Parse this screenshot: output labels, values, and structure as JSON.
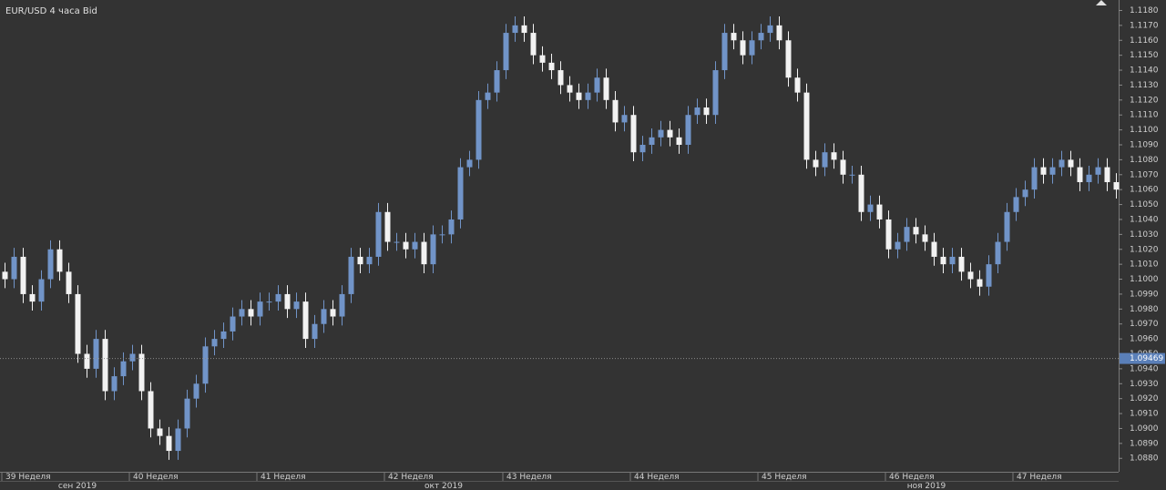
{
  "chart_data": {
    "type": "candlestick",
    "title": "EUR/USD  4 часа Bid",
    "categories": [
      "39 Неделя",
      null,
      null,
      null,
      null,
      null,
      null,
      null,
      null,
      null,
      null,
      null,
      null,
      null,
      "40 Неделя",
      null,
      null,
      null,
      null,
      null,
      null,
      null,
      null,
      null,
      null,
      null,
      null,
      null,
      "41 Неделя",
      null,
      null,
      null,
      null,
      null,
      null,
      null,
      null,
      null,
      null,
      null,
      null,
      null,
      "42 Неделя",
      null,
      null,
      null,
      null,
      null,
      null,
      null,
      null,
      null,
      null,
      null,
      null,
      "43 Неделя",
      null,
      null,
      null,
      null,
      null,
      null,
      null,
      null,
      null,
      null,
      null,
      null,
      null,
      "44 Неделя",
      null,
      null,
      null,
      null,
      null,
      null,
      null,
      null,
      null,
      null,
      null,
      null,
      null,
      "45 Неделя",
      null,
      null,
      null,
      null,
      null,
      null,
      null,
      null,
      null,
      null,
      null,
      null,
      null,
      "46 Неделя",
      null,
      null,
      null,
      null,
      null,
      null,
      null,
      null,
      null,
      null,
      null,
      null,
      null,
      "47 Неделя",
      null,
      null,
      null,
      null,
      null,
      null,
      null,
      null,
      null,
      null,
      null
    ],
    "months": [
      "сен 2019",
      "окт 2019",
      "ноя 2019"
    ],
    "open": [
      1.1005,
      1.1,
      1.1015,
      1.099,
      1.0985,
      1.1,
      1.102,
      1.1005,
      1.099,
      1.095,
      1.094,
      1.096,
      1.0925,
      1.0935,
      1.0945,
      1.095,
      1.0925,
      1.09,
      1.0895,
      1.0885,
      1.09,
      1.092,
      1.093,
      1.0955,
      1.096,
      1.0965,
      1.0975,
      1.098,
      1.0975,
      1.0985,
      1.0985,
      1.099,
      1.098,
      1.0985,
      1.096,
      1.097,
      1.098,
      1.0975,
      1.099,
      1.1015,
      1.101,
      1.1015,
      1.1045,
      1.1025,
      1.1025,
      1.102,
      1.1025,
      1.101,
      1.103,
      1.103,
      1.104,
      1.1075,
      1.108,
      1.112,
      1.1125,
      1.114,
      1.1165,
      1.117,
      1.1165,
      1.115,
      1.1145,
      1.114,
      1.113,
      1.1125,
      1.112,
      1.1125,
      1.1135,
      1.112,
      1.1105,
      1.111,
      1.1085,
      1.109,
      1.1095,
      1.11,
      1.1095,
      1.109,
      1.111,
      1.1115,
      1.111,
      1.114,
      1.1165,
      1.116,
      1.115,
      1.116,
      1.1165,
      1.117,
      1.116,
      1.1135,
      1.1125,
      1.108,
      1.1075,
      1.1085,
      1.108,
      1.107,
      1.107,
      1.1045,
      1.105,
      1.104,
      1.102,
      1.1025,
      1.1035,
      1.103,
      1.1025,
      1.1015,
      1.101,
      1.1015,
      1.1005,
      1.1,
      1.0995,
      1.101,
      1.1025,
      1.1045,
      1.1055,
      1.106,
      1.1075,
      1.107,
      1.1075,
      1.108,
      1.1075,
      1.1065,
      1.107,
      1.1075,
      1.1065
    ],
    "high": [
      1.1011,
      1.1021,
      1.1021,
      1.0996,
      1.1006,
      1.1026,
      1.1026,
      1.1011,
      1.0996,
      1.0956,
      1.0966,
      1.0966,
      1.0941,
      1.0951,
      1.0956,
      1.0956,
      1.0931,
      1.0906,
      1.0901,
      1.0906,
      1.0926,
      1.0936,
      1.0961,
      1.0966,
      1.0971,
      1.0981,
      1.0986,
      1.0986,
      1.0991,
      1.0991,
      1.0996,
      1.0996,
      1.0991,
      1.0991,
      1.0976,
      1.0986,
      1.0986,
      1.0996,
      1.1021,
      1.1021,
      1.1021,
      1.1051,
      1.1051,
      1.1031,
      1.1031,
      1.1031,
      1.1031,
      1.1036,
      1.1036,
      1.1046,
      1.1081,
      1.1086,
      1.1126,
      1.1131,
      1.1146,
      1.1171,
      1.1176,
      1.1176,
      1.1171,
      1.1156,
      1.1151,
      1.1146,
      1.1136,
      1.1131,
      1.1131,
      1.1141,
      1.1141,
      1.1126,
      1.1116,
      1.1116,
      1.1096,
      1.1101,
      1.1106,
      1.1106,
      1.1101,
      1.1116,
      1.1121,
      1.1121,
      1.1146,
      1.1171,
      1.1171,
      1.1166,
      1.1166,
      1.1171,
      1.1176,
      1.1176,
      1.1166,
      1.1141,
      1.1131,
      1.1086,
      1.1091,
      1.1091,
      1.1086,
      1.1076,
      1.1076,
      1.1056,
      1.1056,
      1.1046,
      1.1031,
      1.1041,
      1.1041,
      1.1036,
      1.1031,
      1.1021,
      1.1021,
      1.1021,
      1.1011,
      1.1006,
      1.1016,
      1.1031,
      1.1051,
      1.1061,
      1.1066,
      1.1081,
      1.1081,
      1.1081,
      1.1086,
      1.1086,
      1.1081,
      1.1076,
      1.1081,
      1.1081,
      1.1071
    ],
    "low": [
      1.0994,
      1.0994,
      1.0984,
      1.0979,
      1.0979,
      1.0994,
      1.0999,
      1.0984,
      1.0944,
      1.0934,
      1.0934,
      1.0919,
      1.0919,
      1.0929,
      1.0939,
      1.0919,
      1.0894,
      1.0889,
      1.0879,
      1.0879,
      1.0894,
      1.0914,
      1.0924,
      1.0949,
      1.0954,
      1.0959,
      1.0969,
      1.0969,
      1.0969,
      1.0979,
      1.0979,
      1.0974,
      1.0974,
      1.0954,
      1.0954,
      1.0964,
      1.0969,
      1.0969,
      1.0984,
      1.1004,
      1.1004,
      1.1009,
      1.1019,
      1.1019,
      1.1014,
      1.1014,
      1.1004,
      1.1004,
      1.1024,
      1.1024,
      1.1034,
      1.1069,
      1.1074,
      1.1114,
      1.1119,
      1.1134,
      1.1159,
      1.1159,
      1.1144,
      1.1139,
      1.1134,
      1.1124,
      1.1119,
      1.1114,
      1.1114,
      1.1119,
      1.1114,
      1.1099,
      1.1099,
      1.1079,
      1.1079,
      1.1084,
      1.1089,
      1.1089,
      1.1084,
      1.1084,
      1.1104,
      1.1104,
      1.1104,
      1.1134,
      1.1154,
      1.1144,
      1.1144,
      1.1154,
      1.1159,
      1.1154,
      1.1129,
      1.1119,
      1.1074,
      1.1069,
      1.1069,
      1.1074,
      1.1064,
      1.1064,
      1.1039,
      1.1039,
      1.1034,
      1.1014,
      1.1014,
      1.1019,
      1.1024,
      1.1019,
      1.1009,
      1.1004,
      1.1004,
      1.0999,
      1.0994,
      1.0989,
      1.0989,
      1.1004,
      1.1019,
      1.1039,
      1.1049,
      1.1054,
      1.1064,
      1.1064,
      1.1069,
      1.1069,
      1.1059,
      1.1059,
      1.1064,
      1.1059,
      1.1054
    ],
    "close": [
      1.1,
      1.1015,
      1.099,
      1.0985,
      1.1,
      1.102,
      1.1005,
      1.099,
      1.095,
      1.094,
      1.096,
      1.0925,
      1.0935,
      1.0945,
      1.095,
      1.0925,
      1.09,
      1.0895,
      1.0885,
      1.09,
      1.092,
      1.093,
      1.0955,
      1.096,
      1.0965,
      1.0975,
      1.098,
      1.0975,
      1.0985,
      1.0985,
      1.099,
      1.098,
      1.0985,
      1.096,
      1.097,
      1.098,
      1.0975,
      1.099,
      1.1015,
      1.101,
      1.1015,
      1.1045,
      1.1025,
      1.1025,
      1.102,
      1.1025,
      1.101,
      1.103,
      1.103,
      1.104,
      1.1075,
      1.108,
      1.112,
      1.1125,
      1.114,
      1.1165,
      1.117,
      1.1165,
      1.115,
      1.1145,
      1.114,
      1.113,
      1.1125,
      1.112,
      1.1125,
      1.1135,
      1.112,
      1.1105,
      1.111,
      1.1085,
      1.109,
      1.1095,
      1.11,
      1.1095,
      1.109,
      1.111,
      1.1115,
      1.111,
      1.114,
      1.1165,
      1.116,
      1.115,
      1.116,
      1.1165,
      1.117,
      1.116,
      1.1135,
      1.1125,
      1.108,
      1.1075,
      1.1085,
      1.108,
      1.107,
      1.107,
      1.1045,
      1.105,
      1.104,
      1.102,
      1.1025,
      1.1035,
      1.103,
      1.1025,
      1.1015,
      1.101,
      1.1015,
      1.1005,
      1.1,
      1.0995,
      1.101,
      1.1025,
      1.1045,
      1.1055,
      1.106,
      1.1075,
      1.107,
      1.1075,
      1.108,
      1.1075,
      1.1065,
      1.107,
      1.1075,
      1.1065,
      1.106
    ],
    "up_color": "#7194c8",
    "down_color": "#f2f2f2",
    "current_price": {
      "value": 1.09469,
      "label": "1.09469"
    },
    "ylim": [
      1.0871,
      1.1187
    ],
    "yticks": [
      {
        "value": 1.088,
        "label": "1.0880"
      },
      {
        "value": 1.089,
        "label": "1.0890"
      },
      {
        "value": 1.09,
        "label": "1.0900"
      },
      {
        "value": 1.091,
        "label": "1.0910"
      },
      {
        "value": 1.092,
        "label": "1.0920"
      },
      {
        "value": 1.093,
        "label": "1.0930"
      },
      {
        "value": 1.094,
        "label": "1.0940"
      },
      {
        "value": 1.095,
        "label": "1.0950"
      },
      {
        "value": 1.096,
        "label": "1.0960"
      },
      {
        "value": 1.097,
        "label": "1.0970"
      },
      {
        "value": 1.098,
        "label": "1.0980"
      },
      {
        "value": 1.099,
        "label": "1.0990"
      },
      {
        "value": 1.1,
        "label": "1.1000"
      },
      {
        "value": 1.101,
        "label": "1.1010"
      },
      {
        "value": 1.102,
        "label": "1.1020"
      },
      {
        "value": 1.103,
        "label": "1.1030"
      },
      {
        "value": 1.104,
        "label": "1.1040"
      },
      {
        "value": 1.105,
        "label": "1.1050"
      },
      {
        "value": 1.106,
        "label": "1.1060"
      },
      {
        "value": 1.107,
        "label": "1.1070"
      },
      {
        "value": 1.108,
        "label": "1.1080"
      },
      {
        "value": 1.109,
        "label": "1.1090"
      },
      {
        "value": 1.11,
        "label": "1.1100"
      },
      {
        "value": 1.111,
        "label": "1.1110"
      },
      {
        "value": 1.112,
        "label": "1.1120"
      },
      {
        "value": 1.113,
        "label": "1.1130"
      },
      {
        "value": 1.114,
        "label": "1.1140"
      },
      {
        "value": 1.115,
        "label": "1.1150"
      },
      {
        "value": 1.116,
        "label": "1.1160"
      },
      {
        "value": 1.117,
        "label": "1.1170"
      },
      {
        "value": 1.118,
        "label": "1.1180"
      }
    ]
  }
}
